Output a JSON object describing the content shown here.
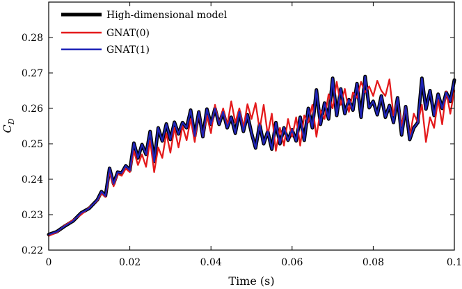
{
  "chart_data": {
    "type": "line",
    "title": "",
    "xlabel": "Time (s)",
    "ylabel": {
      "main": "C",
      "sub": "D"
    },
    "xlim": [
      0,
      0.1
    ],
    "ylim": [
      0.22,
      0.29
    ],
    "xticks": [
      {
        "value": 0,
        "label": "0"
      },
      {
        "value": 0.02,
        "label": "0.02"
      },
      {
        "value": 0.04,
        "label": "0.04"
      },
      {
        "value": 0.06,
        "label": "0.06"
      },
      {
        "value": 0.08,
        "label": "0.08"
      },
      {
        "value": 0.1,
        "label": "0.1"
      }
    ],
    "yticks": [
      {
        "value": 0.22,
        "label": "0.22"
      },
      {
        "value": 0.23,
        "label": "0.23"
      },
      {
        "value": 0.24,
        "label": "0.24"
      },
      {
        "value": 0.25,
        "label": "0.25"
      },
      {
        "value": 0.26,
        "label": "0.26"
      },
      {
        "value": 0.27,
        "label": "0.27"
      },
      {
        "value": 0.28,
        "label": "0.28"
      }
    ],
    "grid": false,
    "legend_position": "top-left",
    "series": [
      {
        "name": "High-dimensional model",
        "color": "#000000",
        "x": [
          0,
          0.002,
          0.004,
          0.006,
          0.008,
          0.01,
          0.012,
          0.013,
          0.014,
          0.015,
          0.016,
          0.017,
          0.018,
          0.019,
          0.02,
          0.021,
          0.022,
          0.023,
          0.024,
          0.025,
          0.026,
          0.027,
          0.028,
          0.029,
          0.03,
          0.031,
          0.032,
          0.033,
          0.034,
          0.035,
          0.036,
          0.037,
          0.038,
          0.039,
          0.04,
          0.041,
          0.042,
          0.043,
          0.044,
          0.045,
          0.046,
          0.047,
          0.048,
          0.049,
          0.05,
          0.051,
          0.052,
          0.053,
          0.054,
          0.055,
          0.056,
          0.057,
          0.058,
          0.059,
          0.06,
          0.061,
          0.062,
          0.063,
          0.064,
          0.065,
          0.066,
          0.067,
          0.068,
          0.069,
          0.07,
          0.071,
          0.072,
          0.073,
          0.074,
          0.075,
          0.076,
          0.077,
          0.078,
          0.079,
          0.08,
          0.081,
          0.082,
          0.083,
          0.084,
          0.085,
          0.086,
          0.087,
          0.088,
          0.089,
          0.09,
          0.091,
          0.092,
          0.093,
          0.094,
          0.095,
          0.096,
          0.097,
          0.098,
          0.099,
          0.1
        ],
        "values": [
          0.2244,
          0.2252,
          0.2268,
          0.2282,
          0.2305,
          0.2318,
          0.2342,
          0.2365,
          0.2353,
          0.2431,
          0.2387,
          0.242,
          0.2418,
          0.2438,
          0.2425,
          0.2502,
          0.246,
          0.2498,
          0.247,
          0.2535,
          0.245,
          0.2545,
          0.2508,
          0.2556,
          0.2512,
          0.2561,
          0.2528,
          0.256,
          0.2545,
          0.2595,
          0.2522,
          0.259,
          0.252,
          0.2598,
          0.2555,
          0.26,
          0.2555,
          0.259,
          0.2545,
          0.2575,
          0.253,
          0.259,
          0.2535,
          0.2582,
          0.253,
          0.2488,
          0.2555,
          0.25,
          0.2535,
          0.2485,
          0.256,
          0.25,
          0.2545,
          0.251,
          0.254,
          0.2508,
          0.2575,
          0.251,
          0.26,
          0.2545,
          0.2652,
          0.2555,
          0.2615,
          0.257,
          0.2685,
          0.258,
          0.2655,
          0.2585,
          0.2625,
          0.2595,
          0.267,
          0.2575,
          0.269,
          0.2602,
          0.262,
          0.2582,
          0.2635,
          0.2575,
          0.2608,
          0.256,
          0.263,
          0.2525,
          0.2605,
          0.2512,
          0.2545,
          0.256,
          0.2685,
          0.2598,
          0.265,
          0.258,
          0.264,
          0.26,
          0.2645,
          0.262,
          0.268
        ]
      },
      {
        "name": "GNAT(0)",
        "color": "#e41a1c",
        "x": [
          0,
          0.002,
          0.004,
          0.006,
          0.008,
          0.01,
          0.012,
          0.013,
          0.014,
          0.015,
          0.016,
          0.017,
          0.018,
          0.019,
          0.02,
          0.021,
          0.022,
          0.023,
          0.024,
          0.025,
          0.026,
          0.027,
          0.028,
          0.029,
          0.03,
          0.031,
          0.032,
          0.033,
          0.034,
          0.035,
          0.036,
          0.037,
          0.038,
          0.039,
          0.04,
          0.041,
          0.042,
          0.043,
          0.044,
          0.045,
          0.046,
          0.047,
          0.048,
          0.049,
          0.05,
          0.051,
          0.052,
          0.053,
          0.054,
          0.055,
          0.056,
          0.057,
          0.058,
          0.059,
          0.06,
          0.061,
          0.062,
          0.063,
          0.064,
          0.065,
          0.066,
          0.067,
          0.068,
          0.069,
          0.07,
          0.071,
          0.072,
          0.073,
          0.074,
          0.075,
          0.076,
          0.077,
          0.078,
          0.079,
          0.08,
          0.081,
          0.082,
          0.083,
          0.084,
          0.085,
          0.086,
          0.087,
          0.088,
          0.089,
          0.09,
          0.091,
          0.092,
          0.093,
          0.094,
          0.095,
          0.096,
          0.097,
          0.098,
          0.099,
          0.1
        ],
        "values": [
          0.224,
          0.225,
          0.227,
          0.2285,
          0.23,
          0.232,
          0.234,
          0.236,
          0.235,
          0.242,
          0.238,
          0.2415,
          0.241,
          0.243,
          0.242,
          0.248,
          0.244,
          0.247,
          0.2435,
          0.251,
          0.242,
          0.249,
          0.246,
          0.253,
          0.2475,
          0.2545,
          0.249,
          0.255,
          0.251,
          0.257,
          0.2505,
          0.259,
          0.252,
          0.258,
          0.253,
          0.261,
          0.2555,
          0.26,
          0.255,
          0.262,
          0.256,
          0.26,
          0.2545,
          0.2612,
          0.257,
          0.2615,
          0.254,
          0.261,
          0.2525,
          0.2585,
          0.248,
          0.2545,
          0.2495,
          0.257,
          0.252,
          0.2575,
          0.2495,
          0.258,
          0.256,
          0.261,
          0.252,
          0.2595,
          0.257,
          0.264,
          0.26,
          0.2675,
          0.261,
          0.2655,
          0.259,
          0.2645,
          0.263,
          0.2675,
          0.2645,
          0.2662,
          0.2635,
          0.2678,
          0.265,
          0.2635,
          0.2682,
          0.258,
          0.2625,
          0.255,
          0.2605,
          0.252,
          0.2585,
          0.256,
          0.261,
          0.2505,
          0.2575,
          0.2545,
          0.2625,
          0.2555,
          0.2648,
          0.2585,
          0.265
        ]
      },
      {
        "name": "GNAT(1)",
        "color": "#1f24b8",
        "x": [
          0,
          0.002,
          0.004,
          0.006,
          0.008,
          0.01,
          0.012,
          0.013,
          0.014,
          0.015,
          0.016,
          0.017,
          0.018,
          0.019,
          0.02,
          0.021,
          0.022,
          0.023,
          0.024,
          0.025,
          0.026,
          0.027,
          0.028,
          0.029,
          0.03,
          0.031,
          0.032,
          0.033,
          0.034,
          0.035,
          0.036,
          0.037,
          0.038,
          0.039,
          0.04,
          0.041,
          0.042,
          0.043,
          0.044,
          0.045,
          0.046,
          0.047,
          0.048,
          0.049,
          0.05,
          0.051,
          0.052,
          0.053,
          0.054,
          0.055,
          0.056,
          0.057,
          0.058,
          0.059,
          0.06,
          0.061,
          0.062,
          0.063,
          0.064,
          0.065,
          0.066,
          0.067,
          0.068,
          0.069,
          0.07,
          0.071,
          0.072,
          0.073,
          0.074,
          0.075,
          0.076,
          0.077,
          0.078,
          0.079,
          0.08,
          0.081,
          0.082,
          0.083,
          0.084,
          0.085,
          0.086,
          0.087,
          0.088,
          0.089,
          0.09,
          0.091,
          0.092,
          0.093,
          0.094,
          0.095,
          0.096,
          0.097,
          0.098,
          0.099,
          0.1
        ],
        "values": [
          0.2244,
          0.2252,
          0.2268,
          0.2282,
          0.2305,
          0.2318,
          0.2342,
          0.2365,
          0.2353,
          0.2431,
          0.2387,
          0.242,
          0.2418,
          0.2438,
          0.2425,
          0.2502,
          0.246,
          0.2498,
          0.247,
          0.2535,
          0.245,
          0.2545,
          0.2508,
          0.2556,
          0.2512,
          0.2561,
          0.2528,
          0.256,
          0.2545,
          0.2595,
          0.2522,
          0.259,
          0.252,
          0.2598,
          0.2555,
          0.26,
          0.2555,
          0.259,
          0.2545,
          0.2575,
          0.253,
          0.259,
          0.2535,
          0.2582,
          0.253,
          0.2488,
          0.2555,
          0.25,
          0.2535,
          0.2485,
          0.256,
          0.25,
          0.2545,
          0.251,
          0.254,
          0.2508,
          0.2575,
          0.251,
          0.26,
          0.2545,
          0.2652,
          0.2555,
          0.2615,
          0.257,
          0.2685,
          0.258,
          0.2655,
          0.2585,
          0.2625,
          0.2595,
          0.267,
          0.2575,
          0.269,
          0.2602,
          0.262,
          0.2582,
          0.2635,
          0.2575,
          0.2608,
          0.256,
          0.263,
          0.2525,
          0.2605,
          0.2512,
          0.2545,
          0.256,
          0.2685,
          0.2598,
          0.265,
          0.258,
          0.264,
          0.26,
          0.2645,
          0.262,
          0.268
        ]
      }
    ]
  }
}
